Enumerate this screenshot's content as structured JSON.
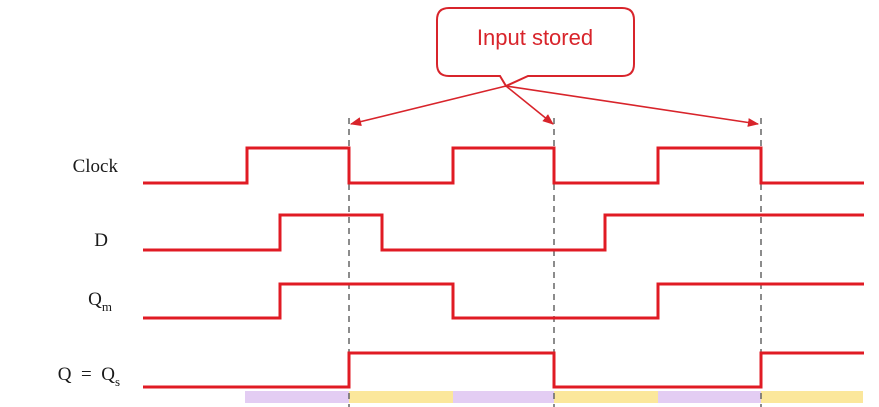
{
  "callout": {
    "text": "Input stored"
  },
  "signals": [
    {
      "id": "clock",
      "label": "Clock",
      "sub": "",
      "prefix": ""
    },
    {
      "id": "d",
      "label": "D",
      "sub": "",
      "prefix": ""
    },
    {
      "id": "qm",
      "label": "Q",
      "sub": "m",
      "prefix": ""
    },
    {
      "id": "qs",
      "label": "Q",
      "sub": "s",
      "prefix": "Q  =  "
    }
  ],
  "colors": {
    "waveform": "#e01b24",
    "callout_border": "#d8242b",
    "guides": "#666666",
    "phase_a": "#e3cdf3",
    "phase_b": "#fbe79b"
  }
}
